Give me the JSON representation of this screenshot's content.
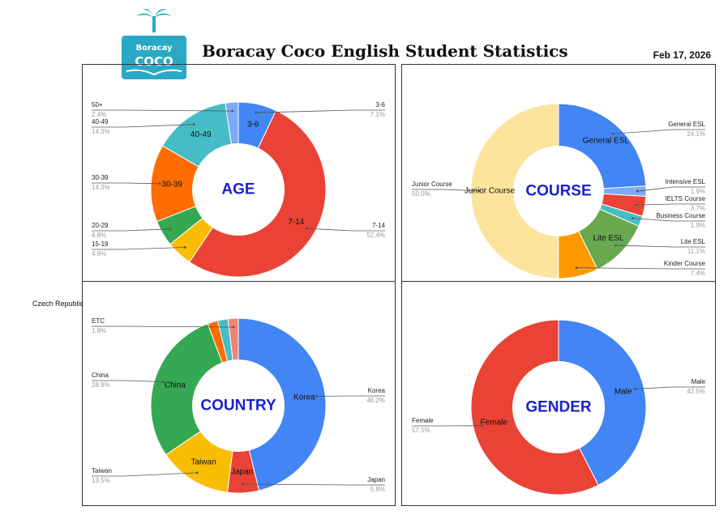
{
  "logo": {
    "line1": "Boracay",
    "line2": "COCO"
  },
  "header": {
    "title": "Boracay Coco English Student Statistics",
    "date": "Feb 17, 2026"
  },
  "colors": {
    "blue": "#4285f4",
    "red": "#ea4335",
    "yellow": "#fbbc04",
    "green": "#34a853",
    "orange": "#ff6d01",
    "teal": "#46bdc6",
    "lightblue": "#7baaf7",
    "pale_yellow": "#fde49c",
    "pink": "#f18374",
    "center_text": "#1a22c9",
    "logo_teal": "#2aa9c4"
  },
  "chart_data": [
    {
      "type": "pie",
      "center_label": "AGE",
      "slices": [
        {
          "label": "3-6",
          "percent": "7.1%",
          "value": 7.1,
          "color": "#4285f4"
        },
        {
          "label": "7-14",
          "percent": "52.4%",
          "value": 52.4,
          "color": "#ea4335"
        },
        {
          "label": "15-19",
          "percent": "4.8%",
          "value": 4.8,
          "color": "#fbbc04"
        },
        {
          "label": "20-29",
          "percent": "4.8%",
          "value": 4.8,
          "color": "#34a853"
        },
        {
          "label": "30-39",
          "percent": "14.3%",
          "value": 14.3,
          "color": "#ff6d01"
        },
        {
          "label": "40-49",
          "percent": "14.3%",
          "value": 14.3,
          "color": "#46bdc6"
        },
        {
          "label": "50+",
          "percent": "2.4%",
          "value": 2.4,
          "color": "#7baaf7"
        }
      ]
    },
    {
      "type": "pie",
      "center_label": "COURSE",
      "slices": [
        {
          "label": "General ESL",
          "percent": "24.1%",
          "value": 24.1,
          "color": "#4285f4"
        },
        {
          "label": "Intensive ESL",
          "percent": "1.9%",
          "value": 1.9,
          "color": "#7baaf7"
        },
        {
          "label": "IELTS Course",
          "percent": "3.7%",
          "value": 3.7,
          "color": "#ea4335"
        },
        {
          "label": "Business Course",
          "percent": "1.9%",
          "value": 1.9,
          "color": "#46bdc6"
        },
        {
          "label": "Lite ESL",
          "percent": "11.1%",
          "value": 11.1,
          "color": "#6aa84f"
        },
        {
          "label": "Kinder Course",
          "percent": "7.4%",
          "value": 7.4,
          "color": "#ff9900"
        },
        {
          "label": "Junior Course",
          "percent": "50.0%",
          "value": 50.0,
          "color": "#fde49c"
        }
      ]
    },
    {
      "type": "pie",
      "center_label": "COUNTRY",
      "slices": [
        {
          "label": "Korea",
          "percent": "46.2%",
          "value": 46.2,
          "color": "#4285f4"
        },
        {
          "label": "Japan",
          "percent": "5.8%",
          "value": 5.8,
          "color": "#ea4335"
        },
        {
          "label": "Taiwan",
          "percent": "13.5%",
          "value": 13.5,
          "color": "#fbbc04"
        },
        {
          "label": "China",
          "percent": "28.8%",
          "value": 28.8,
          "color": "#34a853"
        },
        {
          "label": "Czech Republic",
          "percent": "",
          "value": 1.9,
          "color": "#ff6d01"
        },
        {
          "label": "",
          "percent": "",
          "value": 1.9,
          "color": "#46bdc6"
        },
        {
          "label": "ETC",
          "percent": "1.9%",
          "value": 1.9,
          "color": "#f18374"
        }
      ]
    },
    {
      "type": "pie",
      "center_label": "GENDER",
      "slices": [
        {
          "label": "Male",
          "percent": "42.5%",
          "value": 42.5,
          "color": "#4285f4"
        },
        {
          "label": "Female",
          "percent": "57.5%",
          "value": 57.5,
          "color": "#ea4335"
        }
      ]
    }
  ]
}
